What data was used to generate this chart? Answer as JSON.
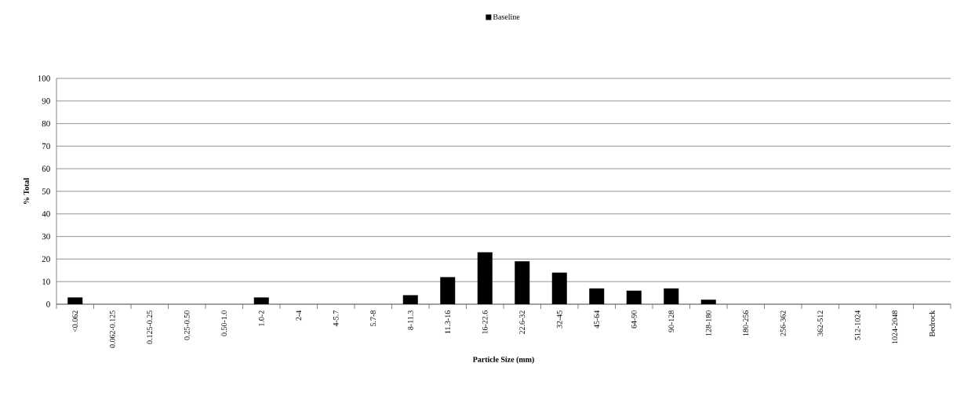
{
  "chart_data": {
    "type": "bar",
    "xlabel": "Particle Size (mm)",
    "ylabel": "% Total",
    "categories": [
      "<0.062",
      "0.062-0.125",
      "0.125-0.25",
      "0.25-0.50",
      "0.50-1.0",
      "1.0-2",
      "2-4",
      "4-5.7",
      "5.7-8",
      "8-11.3",
      "11.3-16",
      "16-22.6",
      "22.6-32",
      "32-45",
      "45-64",
      "64-90",
      "90-128",
      "128-180",
      "180-256",
      "256-362",
      "362-512",
      "512-1024",
      "1024-2048",
      "Bedrock"
    ],
    "series": [
      {
        "name": "Baseline",
        "color": "#000000",
        "values": [
          3,
          0,
          0,
          0,
          0,
          3,
          0,
          0,
          0,
          4,
          12,
          23,
          19,
          14,
          7,
          6,
          7,
          2,
          0,
          0,
          0,
          0,
          0,
          0
        ]
      }
    ],
    "ylim": [
      0,
      100
    ],
    "yticks": [
      0,
      10,
      20,
      30,
      40,
      50,
      60,
      70,
      80,
      90,
      100
    ],
    "grid": "y",
    "legend": "top"
  }
}
